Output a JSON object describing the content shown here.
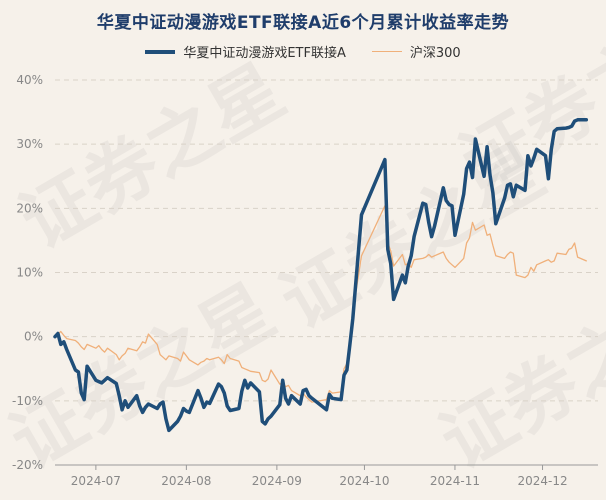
{
  "chart_data": {
    "type": "line",
    "title": "华夏中证动漫游戏ETF联接A近6个月累计收益率走势",
    "watermark": "证券之星",
    "ylim": [
      -20,
      40
    ],
    "yticks": [
      -20,
      -10,
      0,
      10,
      20,
      30,
      40
    ],
    "ytick_labels": [
      "-20%",
      "-10%",
      "0%",
      "10%",
      "20%",
      "30%",
      "40%"
    ],
    "x_range": [
      "2024-06-17",
      "2024-12-20"
    ],
    "xticks": [
      "2024-07-01",
      "2024-08-01",
      "2024-09-01",
      "2024-10-01",
      "2024-11-01",
      "2024-12-01"
    ],
    "xtick_labels": [
      "2024-07",
      "2024-08",
      "2024-09",
      "2024-10",
      "2024-11",
      "2024-12"
    ],
    "grid": true,
    "legend_position": "top-center",
    "series": [
      {
        "name": "华夏中证动漫游戏ETF联接A",
        "color": "#1f4e79",
        "points": [
          [
            "2024-06-17",
            0
          ],
          [
            "2024-06-18",
            0.5
          ],
          [
            "2024-06-19",
            -1.2
          ],
          [
            "2024-06-20",
            -0.8
          ],
          [
            "2024-06-21",
            -2
          ],
          [
            "2024-06-24",
            -5.2
          ],
          [
            "2024-06-25",
            -5.5
          ],
          [
            "2024-06-26",
            -8.8
          ],
          [
            "2024-06-27",
            -9.8
          ],
          [
            "2024-06-28",
            -4.6
          ],
          [
            "2024-07-01",
            -6.8
          ],
          [
            "2024-07-02",
            -7
          ],
          [
            "2024-07-03",
            -7.2
          ],
          [
            "2024-07-04",
            -6.8
          ],
          [
            "2024-07-05",
            -6.4
          ],
          [
            "2024-07-08",
            -7.3
          ],
          [
            "2024-07-09",
            -9.2
          ],
          [
            "2024-07-10",
            -11.4
          ],
          [
            "2024-07-11",
            -10
          ],
          [
            "2024-07-12",
            -11
          ],
          [
            "2024-07-15",
            -9.2
          ],
          [
            "2024-07-16",
            -10.8
          ],
          [
            "2024-07-17",
            -11.8
          ],
          [
            "2024-07-18",
            -11
          ],
          [
            "2024-07-19",
            -10.5
          ],
          [
            "2024-07-22",
            -11.2
          ],
          [
            "2024-07-23",
            -10.5
          ],
          [
            "2024-07-24",
            -10.2
          ],
          [
            "2024-07-25",
            -12.8
          ],
          [
            "2024-07-26",
            -14.6
          ],
          [
            "2024-07-29",
            -13.2
          ],
          [
            "2024-07-30",
            -12.4
          ],
          [
            "2024-07-31",
            -11.2
          ],
          [
            "2024-08-01",
            -11.6
          ],
          [
            "2024-08-02",
            -11.8
          ],
          [
            "2024-08-05",
            -8.4
          ],
          [
            "2024-08-06",
            -9.6
          ],
          [
            "2024-08-07",
            -11
          ],
          [
            "2024-08-08",
            -10.2
          ],
          [
            "2024-08-09",
            -10.4
          ],
          [
            "2024-08-12",
            -7.4
          ],
          [
            "2024-08-13",
            -7.8
          ],
          [
            "2024-08-14",
            -8.8
          ],
          [
            "2024-08-15",
            -10.8
          ],
          [
            "2024-08-16",
            -11.5
          ],
          [
            "2024-08-19",
            -11.2
          ],
          [
            "2024-08-20",
            -8.5
          ],
          [
            "2024-08-21",
            -6.8
          ],
          [
            "2024-08-22",
            -8
          ],
          [
            "2024-08-23",
            -7.2
          ],
          [
            "2024-08-26",
            -8.6
          ],
          [
            "2024-08-27",
            -13.2
          ],
          [
            "2024-08-28",
            -13.6
          ],
          [
            "2024-08-29",
            -12.8
          ],
          [
            "2024-08-30",
            -12.4
          ],
          [
            "2024-09-02",
            -10.6
          ],
          [
            "2024-09-03",
            -6.8
          ],
          [
            "2024-09-04",
            -9.6
          ],
          [
            "2024-09-05",
            -10.5
          ],
          [
            "2024-09-06",
            -9.2
          ],
          [
            "2024-09-09",
            -10.5
          ],
          [
            "2024-09-10",
            -8.4
          ],
          [
            "2024-09-11",
            -8.2
          ],
          [
            "2024-09-12",
            -9.2
          ],
          [
            "2024-09-13",
            -9.6
          ],
          [
            "2024-09-18",
            -11.4
          ],
          [
            "2024-09-19",
            -9
          ],
          [
            "2024-09-20",
            -9.6
          ],
          [
            "2024-09-23",
            -9.8
          ],
          [
            "2024-09-24",
            -6
          ],
          [
            "2024-09-25",
            -5.2
          ],
          [
            "2024-09-26",
            -1.2
          ],
          [
            "2024-09-27",
            2.8
          ],
          [
            "2024-09-30",
            19
          ],
          [
            "2024-10-08",
            27.6
          ],
          [
            "2024-10-09",
            13.6
          ],
          [
            "2024-10-10",
            11.4
          ],
          [
            "2024-10-11",
            5.8
          ],
          [
            "2024-10-14",
            9.6
          ],
          [
            "2024-10-15",
            8.4
          ],
          [
            "2024-10-16",
            11
          ],
          [
            "2024-10-17",
            12.6
          ],
          [
            "2024-10-18",
            15.6
          ],
          [
            "2024-10-21",
            20.8
          ],
          [
            "2024-10-22",
            20.6
          ],
          [
            "2024-10-23",
            17.8
          ],
          [
            "2024-10-24",
            15.6
          ],
          [
            "2024-10-25",
            17.2
          ],
          [
            "2024-10-28",
            23.2
          ],
          [
            "2024-10-29",
            21.2
          ],
          [
            "2024-10-30",
            20.6
          ],
          [
            "2024-10-31",
            20.4
          ],
          [
            "2024-11-01",
            15.8
          ],
          [
            "2024-11-04",
            22.2
          ],
          [
            "2024-11-05",
            26.2
          ],
          [
            "2024-11-06",
            27.2
          ],
          [
            "2024-11-07",
            24.8
          ],
          [
            "2024-11-08",
            30.8
          ],
          [
            "2024-11-11",
            25
          ],
          [
            "2024-11-12",
            29.6
          ],
          [
            "2024-11-13",
            25.2
          ],
          [
            "2024-11-14",
            22.4
          ],
          [
            "2024-11-15",
            17.6
          ],
          [
            "2024-11-18",
            21.6
          ],
          [
            "2024-11-19",
            23.6
          ],
          [
            "2024-11-20",
            23.8
          ],
          [
            "2024-11-21",
            21.8
          ],
          [
            "2024-11-22",
            23.6
          ],
          [
            "2024-11-25",
            22.8
          ],
          [
            "2024-11-26",
            28.2
          ],
          [
            "2024-11-27",
            26.6
          ],
          [
            "2024-11-28",
            27.8
          ],
          [
            "2024-11-29",
            29.2
          ],
          [
            "2024-12-02",
            28.2
          ],
          [
            "2024-12-03",
            24.6
          ],
          [
            "2024-12-04",
            29.2
          ],
          [
            "2024-12-05",
            32
          ],
          [
            "2024-12-06",
            32.4
          ],
          [
            "2024-12-09",
            32.5
          ],
          [
            "2024-12-10",
            32.6
          ],
          [
            "2024-12-11",
            32.8
          ],
          [
            "2024-12-12",
            33.6
          ],
          [
            "2024-12-13",
            33.8
          ],
          [
            "2024-12-16",
            33.8
          ]
        ]
      },
      {
        "name": "沪深300",
        "color": "#f0b07a",
        "points": [
          [
            "2024-06-17",
            0
          ],
          [
            "2024-06-18",
            0.4
          ],
          [
            "2024-06-19",
            0.8
          ],
          [
            "2024-06-20",
            0.2
          ],
          [
            "2024-06-21",
            -0.3
          ],
          [
            "2024-06-24",
            -0.6
          ],
          [
            "2024-06-25",
            -1
          ],
          [
            "2024-06-26",
            -1.6
          ],
          [
            "2024-06-27",
            -2
          ],
          [
            "2024-06-28",
            -1.2
          ],
          [
            "2024-07-01",
            -1.8
          ],
          [
            "2024-07-02",
            -1.4
          ],
          [
            "2024-07-03",
            -2
          ],
          [
            "2024-07-04",
            -2.4
          ],
          [
            "2024-07-05",
            -1.8
          ],
          [
            "2024-07-08",
            -2.8
          ],
          [
            "2024-07-09",
            -3.6
          ],
          [
            "2024-07-10",
            -3
          ],
          [
            "2024-07-11",
            -2.6
          ],
          [
            "2024-07-12",
            -1.8
          ],
          [
            "2024-07-15",
            -2.2
          ],
          [
            "2024-07-16",
            -1.6
          ],
          [
            "2024-07-17",
            -0.8
          ],
          [
            "2024-07-18",
            -1
          ],
          [
            "2024-07-19",
            0.4
          ],
          [
            "2024-07-22",
            -1.2
          ],
          [
            "2024-07-23",
            -2.8
          ],
          [
            "2024-07-24",
            -3.2
          ],
          [
            "2024-07-25",
            -3.6
          ],
          [
            "2024-07-26",
            -3
          ],
          [
            "2024-07-29",
            -3.4
          ],
          [
            "2024-07-30",
            -3.8
          ],
          [
            "2024-07-31",
            -2.4
          ],
          [
            "2024-08-01",
            -3
          ],
          [
            "2024-08-02",
            -3.6
          ],
          [
            "2024-08-05",
            -4.4
          ],
          [
            "2024-08-06",
            -4
          ],
          [
            "2024-08-07",
            -3.8
          ],
          [
            "2024-08-08",
            -3.4
          ],
          [
            "2024-08-09",
            -3.6
          ],
          [
            "2024-08-12",
            -3.2
          ],
          [
            "2024-08-13",
            -3.6
          ],
          [
            "2024-08-14",
            -4.2
          ],
          [
            "2024-08-15",
            -2.8
          ],
          [
            "2024-08-16",
            -3.4
          ],
          [
            "2024-08-19",
            -3.8
          ],
          [
            "2024-08-20",
            -4.8
          ],
          [
            "2024-08-21",
            -5
          ],
          [
            "2024-08-22",
            -5.2
          ],
          [
            "2024-08-23",
            -5.4
          ],
          [
            "2024-08-26",
            -5.6
          ],
          [
            "2024-08-27",
            -6.8
          ],
          [
            "2024-08-28",
            -7
          ],
          [
            "2024-08-29",
            -6.6
          ],
          [
            "2024-08-30",
            -5.2
          ],
          [
            "2024-09-02",
            -7.4
          ],
          [
            "2024-09-03",
            -7.2
          ],
          [
            "2024-09-04",
            -7.8
          ],
          [
            "2024-09-05",
            -7.6
          ],
          [
            "2024-09-06",
            -8.4
          ],
          [
            "2024-09-09",
            -9.2
          ],
          [
            "2024-09-10",
            -8.8
          ],
          [
            "2024-09-11",
            -9.4
          ],
          [
            "2024-09-12",
            -9.8
          ],
          [
            "2024-09-13",
            -10.2
          ],
          [
            "2024-09-18",
            -9.8
          ],
          [
            "2024-09-19",
            -8.4
          ],
          [
            "2024-09-20",
            -8.8
          ],
          [
            "2024-09-23",
            -8.6
          ],
          [
            "2024-09-24",
            -5
          ],
          [
            "2024-09-25",
            -4.2
          ],
          [
            "2024-09-26",
            -0.6
          ],
          [
            "2024-09-27",
            3.8
          ],
          [
            "2024-09-30",
            12.6
          ],
          [
            "2024-10-08",
            20.4
          ],
          [
            "2024-10-09",
            14.6
          ],
          [
            "2024-10-10",
            13.4
          ],
          [
            "2024-10-11",
            11
          ],
          [
            "2024-10-14",
            12.8
          ],
          [
            "2024-10-15",
            11.2
          ],
          [
            "2024-10-16",
            11.4
          ],
          [
            "2024-10-17",
            10.8
          ],
          [
            "2024-10-18",
            12
          ],
          [
            "2024-10-21",
            12.2
          ],
          [
            "2024-10-22",
            12.4
          ],
          [
            "2024-10-23",
            12.8
          ],
          [
            "2024-10-24",
            12.4
          ],
          [
            "2024-10-25",
            12.6
          ],
          [
            "2024-10-28",
            13.2
          ],
          [
            "2024-10-29",
            12.2
          ],
          [
            "2024-10-30",
            11.6
          ],
          [
            "2024-10-31",
            11.2
          ],
          [
            "2024-11-01",
            10.8
          ],
          [
            "2024-11-04",
            12.2
          ],
          [
            "2024-11-05",
            14.6
          ],
          [
            "2024-11-06",
            15.4
          ],
          [
            "2024-11-07",
            17.8
          ],
          [
            "2024-11-08",
            16.6
          ],
          [
            "2024-11-11",
            17.4
          ],
          [
            "2024-11-12",
            15.8
          ],
          [
            "2024-11-13",
            16
          ],
          [
            "2024-11-14",
            14.2
          ],
          [
            "2024-11-15",
            12.6
          ],
          [
            "2024-11-18",
            12.2
          ],
          [
            "2024-11-19",
            12.8
          ],
          [
            "2024-11-20",
            13.2
          ],
          [
            "2024-11-21",
            13
          ],
          [
            "2024-11-22",
            9.6
          ],
          [
            "2024-11-25",
            9.2
          ],
          [
            "2024-11-26",
            9.6
          ],
          [
            "2024-11-27",
            10.8
          ],
          [
            "2024-11-28",
            10.2
          ],
          [
            "2024-11-29",
            11.2
          ],
          [
            "2024-12-02",
            11.8
          ],
          [
            "2024-12-03",
            12
          ],
          [
            "2024-12-04",
            11.6
          ],
          [
            "2024-12-05",
            11.8
          ],
          [
            "2024-12-06",
            13
          ],
          [
            "2024-12-09",
            12.8
          ],
          [
            "2024-12-10",
            13.6
          ],
          [
            "2024-12-11",
            13.8
          ],
          [
            "2024-12-12",
            14.6
          ],
          [
            "2024-12-13",
            12.4
          ],
          [
            "2024-12-16",
            11.8
          ]
        ]
      }
    ]
  }
}
